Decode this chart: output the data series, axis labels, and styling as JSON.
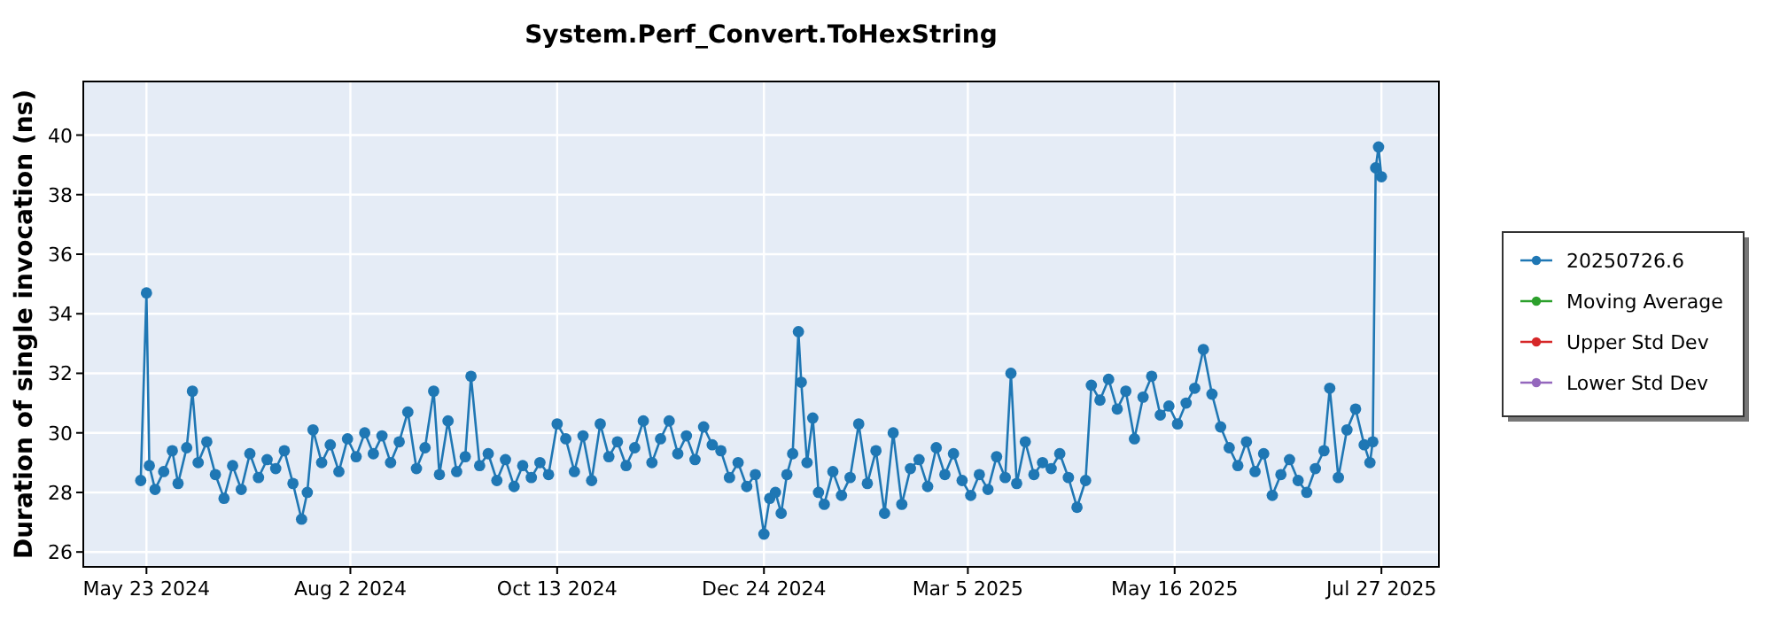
{
  "chart_data": {
    "type": "line",
    "title": "System.Perf_Convert.ToHexString",
    "ylabel": "Duration of single invocation (ns)",
    "marker": "circle",
    "grid": true,
    "legend": "right",
    "xlim": [
      "2024-05-01",
      "2025-08-16"
    ],
    "xticks": [
      {
        "value": "2024-05-23",
        "label": "May 23 2024"
      },
      {
        "value": "2024-08-02",
        "label": "Aug 2 2024"
      },
      {
        "value": "2024-10-13",
        "label": "Oct 13 2024"
      },
      {
        "value": "2024-12-24",
        "label": "Dec 24 2024"
      },
      {
        "value": "2025-03-05",
        "label": "Mar 5 2025"
      },
      {
        "value": "2025-05-16",
        "label": "May 16 2025"
      },
      {
        "value": "2025-07-27",
        "label": "Jul 27 2025"
      }
    ],
    "ylim": [
      25.5,
      41.8
    ],
    "yticks": [
      26,
      28,
      30,
      32,
      34,
      36,
      38,
      40
    ],
    "series": [
      {
        "name": "20250726.6",
        "color": "#1f77b4",
        "x": [
          "2024-05-21",
          "2024-05-23",
          "2024-05-24",
          "2024-05-26",
          "2024-05-29",
          "2024-06-01",
          "2024-06-03",
          "2024-06-06",
          "2024-06-08",
          "2024-06-10",
          "2024-06-13",
          "2024-06-16",
          "2024-06-19",
          "2024-06-22",
          "2024-06-25",
          "2024-06-28",
          "2024-07-01",
          "2024-07-04",
          "2024-07-07",
          "2024-07-10",
          "2024-07-13",
          "2024-07-16",
          "2024-07-18",
          "2024-07-20",
          "2024-07-23",
          "2024-07-26",
          "2024-07-29",
          "2024-08-01",
          "2024-08-04",
          "2024-08-07",
          "2024-08-10",
          "2024-08-13",
          "2024-08-16",
          "2024-08-19",
          "2024-08-22",
          "2024-08-25",
          "2024-08-28",
          "2024-08-31",
          "2024-09-02",
          "2024-09-05",
          "2024-09-08",
          "2024-09-11",
          "2024-09-13",
          "2024-09-16",
          "2024-09-19",
          "2024-09-22",
          "2024-09-25",
          "2024-09-28",
          "2024-10-01",
          "2024-10-04",
          "2024-10-07",
          "2024-10-10",
          "2024-10-13",
          "2024-10-16",
          "2024-10-19",
          "2024-10-22",
          "2024-10-25",
          "2024-10-28",
          "2024-10-31",
          "2024-11-03",
          "2024-11-06",
          "2024-11-09",
          "2024-11-12",
          "2024-11-15",
          "2024-11-18",
          "2024-11-21",
          "2024-11-24",
          "2024-11-27",
          "2024-11-30",
          "2024-12-03",
          "2024-12-06",
          "2024-12-09",
          "2024-12-12",
          "2024-12-15",
          "2024-12-18",
          "2024-12-21",
          "2024-12-24",
          "2024-12-26",
          "2024-12-28",
          "2024-12-30",
          "2025-01-01",
          "2025-01-03",
          "2025-01-05",
          "2025-01-06",
          "2025-01-08",
          "2025-01-10",
          "2025-01-12",
          "2025-01-14",
          "2025-01-17",
          "2025-01-20",
          "2025-01-23",
          "2025-01-26",
          "2025-01-29",
          "2025-02-01",
          "2025-02-04",
          "2025-02-07",
          "2025-02-10",
          "2025-02-13",
          "2025-02-16",
          "2025-02-19",
          "2025-02-22",
          "2025-02-25",
          "2025-02-28",
          "2025-03-03",
          "2025-03-06",
          "2025-03-09",
          "2025-03-12",
          "2025-03-15",
          "2025-03-18",
          "2025-03-20",
          "2025-03-22",
          "2025-03-25",
          "2025-03-28",
          "2025-03-31",
          "2025-04-03",
          "2025-04-06",
          "2025-04-09",
          "2025-04-12",
          "2025-04-15",
          "2025-04-17",
          "2025-04-20",
          "2025-04-23",
          "2025-04-26",
          "2025-04-29",
          "2025-05-02",
          "2025-05-05",
          "2025-05-08",
          "2025-05-11",
          "2025-05-14",
          "2025-05-17",
          "2025-05-20",
          "2025-05-23",
          "2025-05-26",
          "2025-05-29",
          "2025-06-01",
          "2025-06-04",
          "2025-06-07",
          "2025-06-10",
          "2025-06-13",
          "2025-06-16",
          "2025-06-19",
          "2025-06-22",
          "2025-06-25",
          "2025-06-28",
          "2025-07-01",
          "2025-07-04",
          "2025-07-07",
          "2025-07-09",
          "2025-07-12",
          "2025-07-15",
          "2025-07-18",
          "2025-07-21",
          "2025-07-23",
          "2025-07-24",
          "2025-07-25",
          "2025-07-26",
          "2025-07-27"
        ],
        "values": [
          28.4,
          34.7,
          28.9,
          28.1,
          28.7,
          29.4,
          28.3,
          29.5,
          31.4,
          29.0,
          29.7,
          28.6,
          27.8,
          28.9,
          28.1,
          29.3,
          28.5,
          29.1,
          28.8,
          29.4,
          28.3,
          27.1,
          28.0,
          30.1,
          29.0,
          29.6,
          28.7,
          29.8,
          29.2,
          30.0,
          29.3,
          29.9,
          29.0,
          29.7,
          30.7,
          28.8,
          29.5,
          31.4,
          28.6,
          30.4,
          28.7,
          29.2,
          31.9,
          28.9,
          29.3,
          28.4,
          29.1,
          28.2,
          28.9,
          28.5,
          29.0,
          28.6,
          30.3,
          29.8,
          28.7,
          29.9,
          28.4,
          30.3,
          29.2,
          29.7,
          28.9,
          29.5,
          30.4,
          29.0,
          29.8,
          30.4,
          29.3,
          29.9,
          29.1,
          30.2,
          29.6,
          29.4,
          28.5,
          29.0,
          28.2,
          28.6,
          26.6,
          27.8,
          28.0,
          27.3,
          28.6,
          29.3,
          33.4,
          31.7,
          29.0,
          30.5,
          28.0,
          27.6,
          28.7,
          27.9,
          28.5,
          30.3,
          28.3,
          29.4,
          27.3,
          30.0,
          27.6,
          28.8,
          29.1,
          28.2,
          29.5,
          28.6,
          29.3,
          28.4,
          27.9,
          28.6,
          28.1,
          29.2,
          28.5,
          32.0,
          28.3,
          29.7,
          28.6,
          29.0,
          28.8,
          29.3,
          28.5,
          27.5,
          28.4,
          31.6,
          31.1,
          31.8,
          30.8,
          31.4,
          29.8,
          31.2,
          31.9,
          30.6,
          30.9,
          30.3,
          31.0,
          31.5,
          32.8,
          31.3,
          30.2,
          29.5,
          28.9,
          29.7,
          28.7,
          29.3,
          27.9,
          28.6,
          29.1,
          28.4,
          28.0,
          28.8,
          29.4,
          31.5,
          28.5,
          30.1,
          30.8,
          29.6,
          29.0,
          29.7,
          38.9,
          39.6,
          38.6
        ]
      },
      {
        "name": "Moving Average",
        "color": "#2ca02c"
      },
      {
        "name": "Upper Std Dev",
        "color": "#d62728"
      },
      {
        "name": "Lower Std Dev",
        "color": "#9467bd"
      }
    ]
  }
}
